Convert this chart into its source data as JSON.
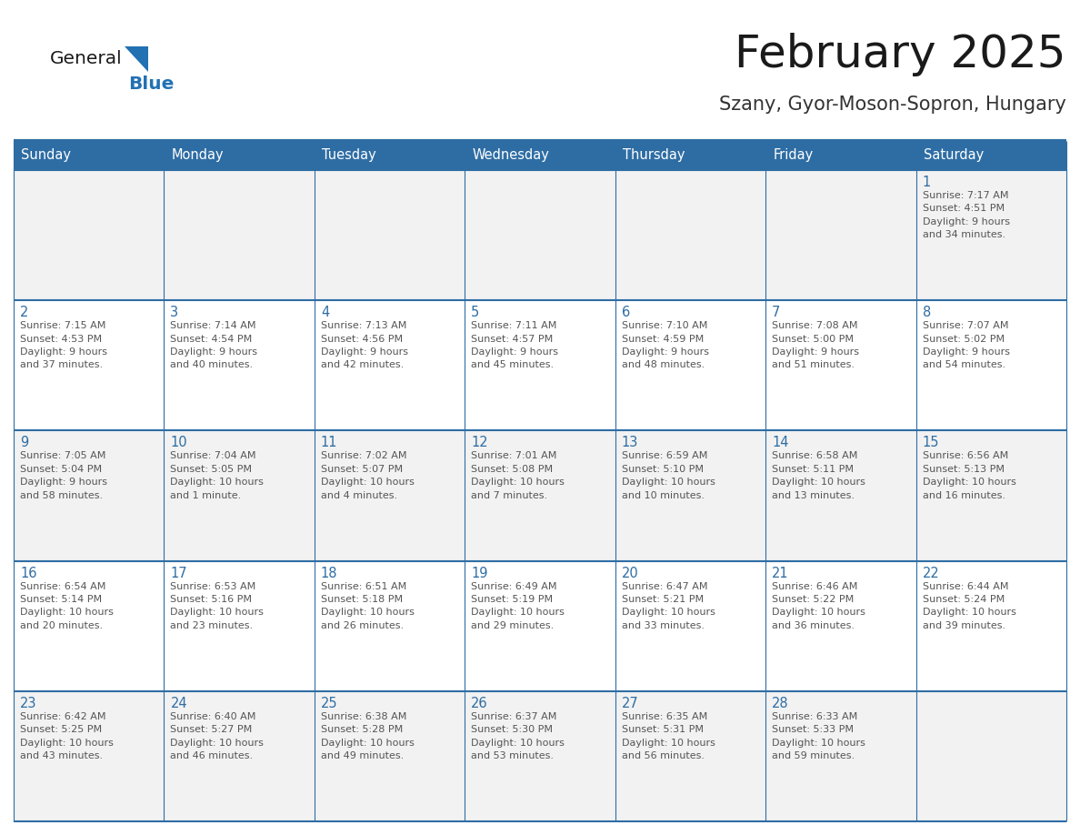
{
  "title": "February 2025",
  "subtitle": "Szany, Gyor-Moson-Sopron, Hungary",
  "days_of_week": [
    "Sunday",
    "Monday",
    "Tuesday",
    "Wednesday",
    "Thursday",
    "Friday",
    "Saturday"
  ],
  "header_bg": "#2E6DA4",
  "header_text": "#FFFFFF",
  "cell_bg_odd": "#F2F2F2",
  "cell_bg_even": "#FFFFFF",
  "divider_color": "#2E6DA4",
  "text_color": "#555555",
  "day_num_color": "#2E6DA4",
  "title_color": "#1a1a1a",
  "subtitle_color": "#333333",
  "logo_general_color": "#1a1a1a",
  "logo_blue_color": "#2271B3",
  "weeks": [
    [
      {
        "day": null,
        "info": null
      },
      {
        "day": null,
        "info": null
      },
      {
        "day": null,
        "info": null
      },
      {
        "day": null,
        "info": null
      },
      {
        "day": null,
        "info": null
      },
      {
        "day": null,
        "info": null
      },
      {
        "day": 1,
        "info": "Sunrise: 7:17 AM\nSunset: 4:51 PM\nDaylight: 9 hours\nand 34 minutes."
      }
    ],
    [
      {
        "day": 2,
        "info": "Sunrise: 7:15 AM\nSunset: 4:53 PM\nDaylight: 9 hours\nand 37 minutes."
      },
      {
        "day": 3,
        "info": "Sunrise: 7:14 AM\nSunset: 4:54 PM\nDaylight: 9 hours\nand 40 minutes."
      },
      {
        "day": 4,
        "info": "Sunrise: 7:13 AM\nSunset: 4:56 PM\nDaylight: 9 hours\nand 42 minutes."
      },
      {
        "day": 5,
        "info": "Sunrise: 7:11 AM\nSunset: 4:57 PM\nDaylight: 9 hours\nand 45 minutes."
      },
      {
        "day": 6,
        "info": "Sunrise: 7:10 AM\nSunset: 4:59 PM\nDaylight: 9 hours\nand 48 minutes."
      },
      {
        "day": 7,
        "info": "Sunrise: 7:08 AM\nSunset: 5:00 PM\nDaylight: 9 hours\nand 51 minutes."
      },
      {
        "day": 8,
        "info": "Sunrise: 7:07 AM\nSunset: 5:02 PM\nDaylight: 9 hours\nand 54 minutes."
      }
    ],
    [
      {
        "day": 9,
        "info": "Sunrise: 7:05 AM\nSunset: 5:04 PM\nDaylight: 9 hours\nand 58 minutes."
      },
      {
        "day": 10,
        "info": "Sunrise: 7:04 AM\nSunset: 5:05 PM\nDaylight: 10 hours\nand 1 minute."
      },
      {
        "day": 11,
        "info": "Sunrise: 7:02 AM\nSunset: 5:07 PM\nDaylight: 10 hours\nand 4 minutes."
      },
      {
        "day": 12,
        "info": "Sunrise: 7:01 AM\nSunset: 5:08 PM\nDaylight: 10 hours\nand 7 minutes."
      },
      {
        "day": 13,
        "info": "Sunrise: 6:59 AM\nSunset: 5:10 PM\nDaylight: 10 hours\nand 10 minutes."
      },
      {
        "day": 14,
        "info": "Sunrise: 6:58 AM\nSunset: 5:11 PM\nDaylight: 10 hours\nand 13 minutes."
      },
      {
        "day": 15,
        "info": "Sunrise: 6:56 AM\nSunset: 5:13 PM\nDaylight: 10 hours\nand 16 minutes."
      }
    ],
    [
      {
        "day": 16,
        "info": "Sunrise: 6:54 AM\nSunset: 5:14 PM\nDaylight: 10 hours\nand 20 minutes."
      },
      {
        "day": 17,
        "info": "Sunrise: 6:53 AM\nSunset: 5:16 PM\nDaylight: 10 hours\nand 23 minutes."
      },
      {
        "day": 18,
        "info": "Sunrise: 6:51 AM\nSunset: 5:18 PM\nDaylight: 10 hours\nand 26 minutes."
      },
      {
        "day": 19,
        "info": "Sunrise: 6:49 AM\nSunset: 5:19 PM\nDaylight: 10 hours\nand 29 minutes."
      },
      {
        "day": 20,
        "info": "Sunrise: 6:47 AM\nSunset: 5:21 PM\nDaylight: 10 hours\nand 33 minutes."
      },
      {
        "day": 21,
        "info": "Sunrise: 6:46 AM\nSunset: 5:22 PM\nDaylight: 10 hours\nand 36 minutes."
      },
      {
        "day": 22,
        "info": "Sunrise: 6:44 AM\nSunset: 5:24 PM\nDaylight: 10 hours\nand 39 minutes."
      }
    ],
    [
      {
        "day": 23,
        "info": "Sunrise: 6:42 AM\nSunset: 5:25 PM\nDaylight: 10 hours\nand 43 minutes."
      },
      {
        "day": 24,
        "info": "Sunrise: 6:40 AM\nSunset: 5:27 PM\nDaylight: 10 hours\nand 46 minutes."
      },
      {
        "day": 25,
        "info": "Sunrise: 6:38 AM\nSunset: 5:28 PM\nDaylight: 10 hours\nand 49 minutes."
      },
      {
        "day": 26,
        "info": "Sunrise: 6:37 AM\nSunset: 5:30 PM\nDaylight: 10 hours\nand 53 minutes."
      },
      {
        "day": 27,
        "info": "Sunrise: 6:35 AM\nSunset: 5:31 PM\nDaylight: 10 hours\nand 56 minutes."
      },
      {
        "day": 28,
        "info": "Sunrise: 6:33 AM\nSunset: 5:33 PM\nDaylight: 10 hours\nand 59 minutes."
      },
      {
        "day": null,
        "info": null
      }
    ]
  ]
}
